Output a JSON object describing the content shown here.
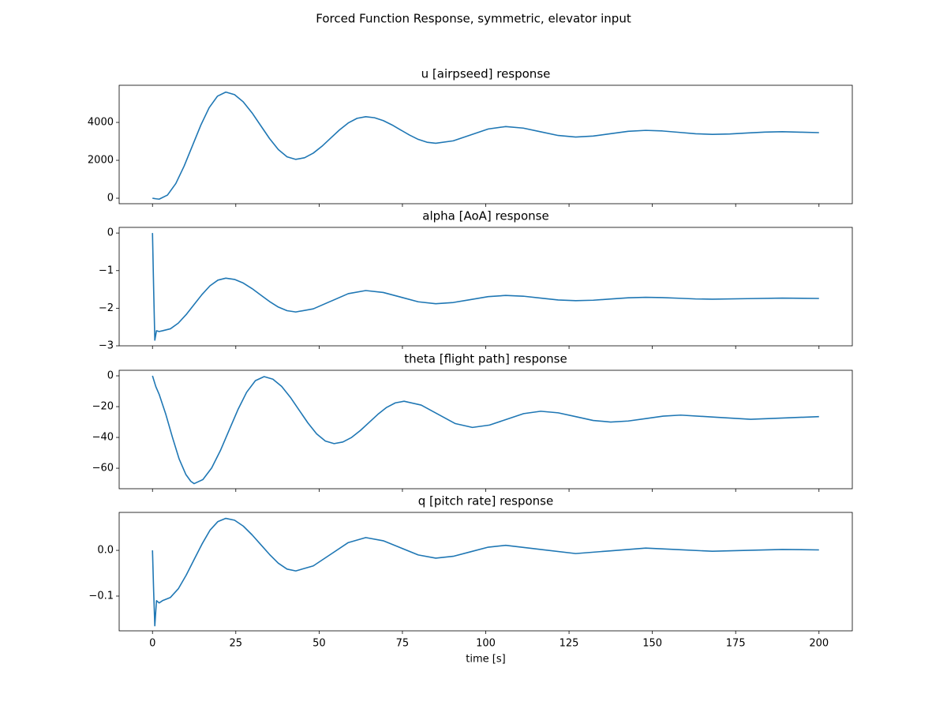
{
  "title": "Forced Function Response, symmetric, elevator input",
  "sharex": true,
  "chart_data": [
    {
      "type": "line",
      "title": "u [airpseed] response",
      "x": [
        0,
        1,
        2,
        4.5,
        7,
        9.5,
        12,
        14.5,
        17,
        19.5,
        22,
        24.63,
        27.25,
        29.88,
        32.5,
        35.13,
        37.75,
        40.38,
        43,
        45.63,
        48.25,
        50.88,
        53.5,
        56.13,
        58.75,
        61.38,
        64,
        66.63,
        69.25,
        71.88,
        74.5,
        77.13,
        79.75,
        82.38,
        85,
        90.25,
        95.5,
        100.75,
        106,
        111.25,
        116.5,
        121.75,
        127,
        132.25,
        137.5,
        142.75,
        148,
        153,
        158,
        163,
        168,
        173.25,
        178.5,
        183.75,
        189,
        194.5,
        200
      ],
      "series": [
        {
          "color": "#1f77b4",
          "values": [
            0,
            -30,
            -50,
            165,
            775,
            1696,
            2775,
            3854,
            4775,
            5385,
            5600,
            5465,
            5082,
            4503,
            3825,
            3147,
            2568,
            2185,
            2050,
            2136,
            2379,
            2745,
            3175,
            3605,
            3972,
            4215,
            4300,
            4247,
            4096,
            3867,
            3600,
            3333,
            3104,
            2953,
            2900,
            3028,
            3340,
            3652,
            3780,
            3700,
            3505,
            3310,
            3230,
            3281,
            3405,
            3529,
            3580,
            3549,
            3475,
            3401,
            3370,
            3390,
            3440,
            3490,
            3510,
            3485,
            3460
          ]
        }
      ],
      "xlim": [
        -10,
        210
      ],
      "xticks": [
        0,
        25,
        50,
        75,
        100,
        125,
        150,
        175,
        200
      ],
      "ylim": [
        -290,
        5960
      ],
      "yticks": [
        0,
        2000,
        4000
      ]
    },
    {
      "type": "line",
      "title": "alpha [AoA] response",
      "x": [
        0,
        0.35,
        0.7,
        1.2,
        2,
        3,
        5.38,
        7.75,
        10.13,
        12.5,
        14.88,
        17.25,
        19.63,
        22,
        24.63,
        27.25,
        29.88,
        32.5,
        35.13,
        37.75,
        40.38,
        43,
        48.25,
        53.5,
        58.75,
        64,
        69.25,
        74.5,
        79.75,
        85,
        90.25,
        95.5,
        100.75,
        106,
        111.25,
        116.5,
        121.75,
        127,
        132.25,
        137.5,
        142.75,
        148,
        153,
        158,
        163,
        168,
        178.5,
        189,
        200
      ],
      "series": [
        {
          "color": "#1f77b4",
          "values": [
            0,
            -1.5,
            -2.85,
            -2.6,
            -2.62,
            -2.6,
            -2.547,
            -2.396,
            -2.167,
            -1.9,
            -1.633,
            -1.404,
            -1.253,
            -1.2,
            -1.234,
            -1.331,
            -1.478,
            -1.65,
            -1.822,
            -1.969,
            -2.066,
            -2.1,
            -2.017,
            -1.815,
            -1.613,
            -1.53,
            -1.581,
            -1.705,
            -1.829,
            -1.88,
            -1.848,
            -1.77,
            -1.692,
            -1.66,
            -1.68,
            -1.73,
            -1.78,
            -1.8,
            -1.787,
            -1.755,
            -1.723,
            -1.71,
            -1.717,
            -1.735,
            -1.753,
            -1.76,
            -1.745,
            -1.73,
            -1.74
          ]
        }
      ],
      "xlim": [
        -10,
        210
      ],
      "xticks": [
        0,
        25,
        50,
        75,
        100,
        125,
        150,
        175,
        200
      ],
      "ylim": [
        -3.0,
        0.15
      ],
      "yticks": [
        {
          "value": -3,
          "label": "−3"
        },
        {
          "value": -2,
          "label": "−2"
        },
        {
          "value": -1,
          "label": "−1"
        },
        0
      ]
    },
    {
      "type": "line",
      "title": "theta [flight path] response",
      "x": [
        0,
        1,
        2,
        4,
        6,
        8,
        10,
        11.5,
        12.5,
        15.13,
        17.75,
        20.38,
        23,
        25.63,
        28.25,
        30.88,
        33.5,
        36.13,
        38.75,
        41.38,
        44,
        46.63,
        49.25,
        51.88,
        54.5,
        57.13,
        59.75,
        62.38,
        65,
        67.63,
        70.25,
        72.88,
        75.5,
        80.63,
        85.75,
        90.88,
        96,
        101.13,
        106.25,
        111.38,
        116.5,
        121.75,
        127,
        132.25,
        137.5,
        142.75,
        148,
        153.25,
        158.5,
        169,
        179.5,
        190,
        200
      ],
      "series": [
        {
          "color": "#1f77b4",
          "values": [
            0,
            -7,
            -12,
            -25,
            -40,
            -54,
            -64,
            -68.5,
            -70,
            -67.36,
            -59.85,
            -48.52,
            -35.25,
            -21.98,
            -10.65,
            -3.14,
            -0.5,
            -2.15,
            -6.85,
            -13.94,
            -22.25,
            -30.56,
            -37.65,
            -42.35,
            -44,
            -42.96,
            -39.99,
            -35.5,
            -30.25,
            -25,
            -20.52,
            -17.55,
            -16.5,
            -18.98,
            -25,
            -31.02,
            -33.5,
            -31.97,
            -28.25,
            -24.53,
            -23,
            -24.02,
            -26.5,
            -28.98,
            -30,
            -29.34,
            -27.75,
            -26.16,
            -25.5,
            -26.85,
            -28.2,
            -27.3,
            -26.5
          ]
        }
      ],
      "xlim": [
        -10,
        210
      ],
      "xticks": [
        0,
        25,
        50,
        75,
        100,
        125,
        150,
        175,
        200
      ],
      "ylim": [
        -73.3,
        3.6
      ],
      "yticks": [
        {
          "value": -60,
          "label": "−60"
        },
        {
          "value": -40,
          "label": "−40"
        },
        {
          "value": -20,
          "label": "−20"
        },
        0
      ]
    },
    {
      "type": "line",
      "title": "q [pitch rate] response",
      "xlabel": "time [s]",
      "x": [
        0,
        0.35,
        0.7,
        1.2,
        2,
        3,
        5.38,
        7.75,
        10.13,
        12.5,
        14.88,
        17.25,
        19.63,
        22,
        24.63,
        27.25,
        29.88,
        32.5,
        35.13,
        37.75,
        40.38,
        43,
        48.25,
        53.5,
        58.75,
        64,
        69.25,
        74.5,
        79.75,
        85,
        90.25,
        95.5,
        100.75,
        106,
        116.5,
        127,
        137.5,
        148,
        158,
        168,
        178.5,
        189,
        200
      ],
      "series": [
        {
          "color": "#1f77b4",
          "values": [
            0,
            -0.09,
            -0.165,
            -0.11,
            -0.115,
            -0.11,
            -0.103,
            -0.084,
            -0.054,
            -0.02,
            0.014,
            0.044,
            0.063,
            0.07,
            0.066,
            0.053,
            0.034,
            0.0125,
            -0.009,
            -0.028,
            -0.041,
            -0.045,
            -0.034,
            -0.0085,
            0.017,
            0.028,
            0.021,
            0.0055,
            -0.01,
            -0.017,
            -0.013,
            -0.003,
            0.007,
            0.011,
            0.002,
            -0.007,
            -0.001,
            0.005,
            0.0015,
            -0.002,
            0,
            0.002,
            0.001
          ]
        }
      ],
      "xlim": [
        -10,
        210
      ],
      "xticks": [
        0,
        25,
        50,
        75,
        100,
        125,
        150,
        175,
        200
      ],
      "ylim": [
        -0.176,
        0.083
      ],
      "yticks": [
        {
          "value": -0.1,
          "label": "−0.1"
        },
        {
          "value": 0,
          "label": "0.0"
        }
      ]
    }
  ]
}
